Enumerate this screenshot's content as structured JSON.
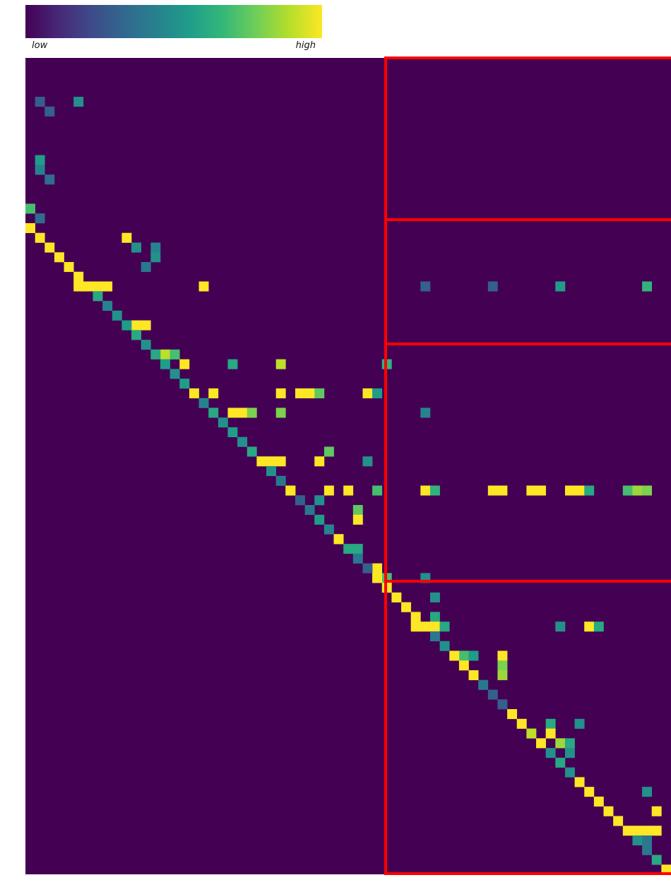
{
  "chart_data": {
    "type": "heatmap",
    "colorbar": {
      "low_label": "low",
      "high_label": "high"
    },
    "zlim": [
      0,
      1
    ],
    "n_rows": 84,
    "n_cols": 67,
    "default_value": 0,
    "cells": [
      [
        4,
        5,
        0.5
      ],
      [
        4,
        1,
        0.3
      ],
      [
        5,
        2,
        0.3
      ],
      [
        10,
        1,
        0.55
      ],
      [
        11,
        1,
        0.45
      ],
      [
        12,
        2,
        0.35
      ],
      [
        15,
        0,
        0.7
      ],
      [
        16,
        1,
        0.35
      ],
      [
        18,
        10,
        1
      ],
      [
        19,
        11,
        0.5
      ],
      [
        19,
        13,
        0.45
      ],
      [
        20,
        13,
        0.5
      ],
      [
        21,
        12,
        0.4
      ],
      [
        23,
        6,
        1
      ],
      [
        23,
        7,
        1
      ],
      [
        23,
        8,
        1
      ],
      [
        23,
        18,
        1
      ],
      [
        23,
        55,
        0.55
      ],
      [
        23,
        64,
        0.65
      ],
      [
        23,
        41,
        0.3
      ],
      [
        23,
        48,
        0.3
      ],
      [
        27,
        11,
        1
      ],
      [
        27,
        12,
        1
      ],
      [
        30,
        14,
        0.9
      ],
      [
        30,
        15,
        0.7
      ],
      [
        31,
        16,
        1
      ],
      [
        31,
        26,
        0.9
      ],
      [
        31,
        37,
        0.65
      ],
      [
        31,
        21,
        0.6
      ],
      [
        34,
        19,
        1
      ],
      [
        34,
        26,
        1
      ],
      [
        34,
        28,
        1
      ],
      [
        34,
        29,
        1
      ],
      [
        34,
        35,
        1
      ],
      [
        34,
        30,
        0.75
      ],
      [
        34,
        36,
        0.55
      ],
      [
        36,
        21,
        1
      ],
      [
        36,
        22,
        1
      ],
      [
        36,
        23,
        0.8
      ],
      [
        36,
        26,
        0.8
      ],
      [
        36,
        41,
        0.45
      ],
      [
        40,
        31,
        0.75
      ],
      [
        41,
        25,
        1
      ],
      [
        41,
        26,
        1
      ],
      [
        41,
        30,
        1
      ],
      [
        41,
        35,
        0.5
      ],
      [
        44,
        27,
        1
      ],
      [
        44,
        31,
        1
      ],
      [
        44,
        33,
        1
      ],
      [
        44,
        36,
        0.7
      ],
      [
        44,
        41,
        1
      ],
      [
        44,
        42,
        0.65
      ],
      [
        44,
        48,
        1
      ],
      [
        44,
        49,
        1
      ],
      [
        44,
        52,
        1
      ],
      [
        44,
        53,
        1
      ],
      [
        44,
        56,
        1
      ],
      [
        44,
        57,
        1
      ],
      [
        44,
        58,
        0.6
      ],
      [
        44,
        62,
        0.7
      ],
      [
        44,
        63,
        0.85
      ],
      [
        44,
        64,
        0.8
      ],
      [
        45,
        30,
        0.5
      ],
      [
        46,
        34,
        0.75
      ],
      [
        47,
        34,
        1
      ],
      [
        49,
        32,
        1
      ],
      [
        50,
        34,
        0.6
      ],
      [
        52,
        36,
        1
      ],
      [
        53,
        36,
        1
      ],
      [
        53,
        37,
        0.7
      ],
      [
        53,
        41,
        0.5
      ],
      [
        55,
        42,
        0.5
      ],
      [
        57,
        42,
        0.6
      ],
      [
        58,
        41,
        1
      ],
      [
        58,
        42,
        1
      ],
      [
        58,
        43,
        0.6
      ],
      [
        58,
        58,
        1
      ],
      [
        58,
        59,
        0.6
      ],
      [
        58,
        55,
        0.5
      ],
      [
        61,
        45,
        0.7
      ],
      [
        61,
        46,
        0.55
      ],
      [
        61,
        49,
        1
      ],
      [
        62,
        49,
        0.8
      ],
      [
        63,
        49,
        0.85
      ],
      [
        68,
        54,
        0.6
      ],
      [
        68,
        57,
        0.5
      ],
      [
        69,
        54,
        1
      ],
      [
        70,
        55,
        0.85
      ],
      [
        70,
        56,
        0.6
      ],
      [
        71,
        56,
        0.5
      ],
      [
        75,
        64,
        0.5
      ],
      [
        77,
        65,
        1
      ],
      [
        79,
        63,
        1
      ],
      [
        79,
        64,
        1
      ],
      [
        79,
        65,
        1
      ],
      [
        80,
        64,
        0.4
      ],
      [
        17,
        0,
        1
      ],
      [
        18,
        1,
        1
      ],
      [
        19,
        2,
        1
      ],
      [
        20,
        3,
        1
      ],
      [
        21,
        4,
        1
      ],
      [
        22,
        5,
        1
      ],
      [
        23,
        5,
        1
      ],
      [
        24,
        7,
        0.6
      ],
      [
        25,
        8,
        0.45
      ],
      [
        26,
        9,
        0.5
      ],
      [
        27,
        10,
        0.55
      ],
      [
        28,
        11,
        0.6
      ],
      [
        29,
        12,
        0.5
      ],
      [
        30,
        13,
        0.6
      ],
      [
        31,
        14,
        0.55
      ],
      [
        32,
        15,
        0.5
      ],
      [
        33,
        16,
        0.55
      ],
      [
        34,
        17,
        1
      ],
      [
        35,
        18,
        0.45
      ],
      [
        36,
        19,
        0.6
      ],
      [
        37,
        20,
        0.5
      ],
      [
        38,
        21,
        0.55
      ],
      [
        39,
        22,
        0.5
      ],
      [
        40,
        23,
        0.6
      ],
      [
        41,
        24,
        1
      ],
      [
        42,
        25,
        0.5
      ],
      [
        43,
        26,
        0.4
      ],
      [
        44,
        27,
        1
      ],
      [
        45,
        28,
        0.3
      ],
      [
        46,
        29,
        0.4
      ],
      [
        47,
        30,
        0.55
      ],
      [
        48,
        31,
        0.45
      ],
      [
        49,
        32,
        1
      ],
      [
        50,
        33,
        0.6
      ],
      [
        51,
        34,
        0.4
      ],
      [
        52,
        35,
        0.3
      ],
      [
        53,
        36,
        1
      ],
      [
        54,
        37,
        1
      ],
      [
        55,
        38,
        1
      ],
      [
        56,
        39,
        1
      ],
      [
        57,
        40,
        1
      ],
      [
        58,
        40,
        1
      ],
      [
        59,
        42,
        0.4
      ],
      [
        60,
        43,
        0.5
      ],
      [
        61,
        44,
        1
      ],
      [
        62,
        45,
        1
      ],
      [
        63,
        46,
        1
      ],
      [
        64,
        47,
        0.4
      ],
      [
        65,
        48,
        0.3
      ],
      [
        66,
        49,
        0.3
      ],
      [
        67,
        50,
        1
      ],
      [
        68,
        51,
        1
      ],
      [
        69,
        52,
        0.9
      ],
      [
        70,
        53,
        1
      ],
      [
        71,
        54,
        0.5
      ],
      [
        72,
        55,
        0.6
      ],
      [
        73,
        56,
        0.5
      ],
      [
        74,
        57,
        1
      ],
      [
        75,
        58,
        1
      ],
      [
        76,
        59,
        1
      ],
      [
        77,
        60,
        1
      ],
      [
        78,
        61,
        1
      ],
      [
        79,
        62,
        1
      ],
      [
        80,
        63,
        0.5
      ],
      [
        81,
        64,
        0.4
      ],
      [
        82,
        65,
        0.6
      ],
      [
        83,
        66,
        1
      ]
    ]
  }
}
